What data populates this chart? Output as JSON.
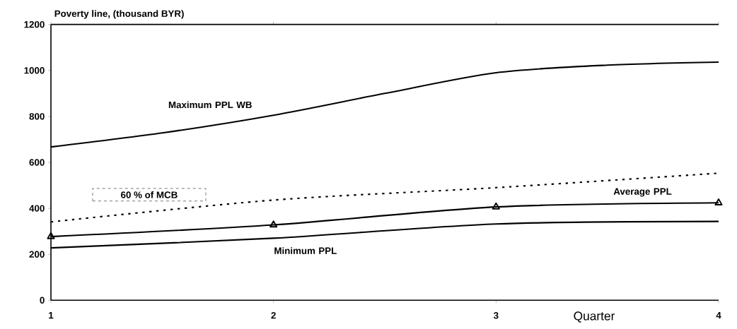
{
  "chart_data": {
    "type": "line",
    "ylabel": "Poverty line, (thousand BYR)",
    "xlabel": "Quarter",
    "xlim": [
      1,
      4
    ],
    "xticks": [
      1,
      2,
      3,
      4
    ],
    "ylim": [
      0,
      1200
    ],
    "yticks": [
      0,
      200,
      400,
      600,
      800,
      1000,
      1200
    ],
    "grid": false,
    "legend": false,
    "series": [
      {
        "name": "Maximum PPL WB",
        "color": "#000000",
        "x": [
          1,
          1.5,
          2,
          2.5,
          3,
          3.5,
          4
        ],
        "values": [
          667,
          728,
          805,
          900,
          990,
          1023,
          1036
        ],
        "line_style": "solid",
        "marker": "none"
      },
      {
        "name": "60 % of MCB",
        "color": "#000000",
        "x": [
          1,
          2,
          3,
          4
        ],
        "values": [
          341,
          436,
          490,
          553
        ],
        "line_style": "dotted",
        "marker": "none"
      },
      {
        "name": "Average PPL",
        "color": "#000000",
        "x": [
          1,
          2,
          3,
          4
        ],
        "values": [
          277,
          328,
          406,
          424
        ],
        "line_style": "solid",
        "marker": "triangle"
      },
      {
        "name": "Minimum PPL",
        "color": "#000000",
        "x": [
          1,
          2,
          3,
          4
        ],
        "values": [
          228,
          270,
          332,
          343
        ],
        "line_style": "solid",
        "marker": "none"
      }
    ]
  }
}
